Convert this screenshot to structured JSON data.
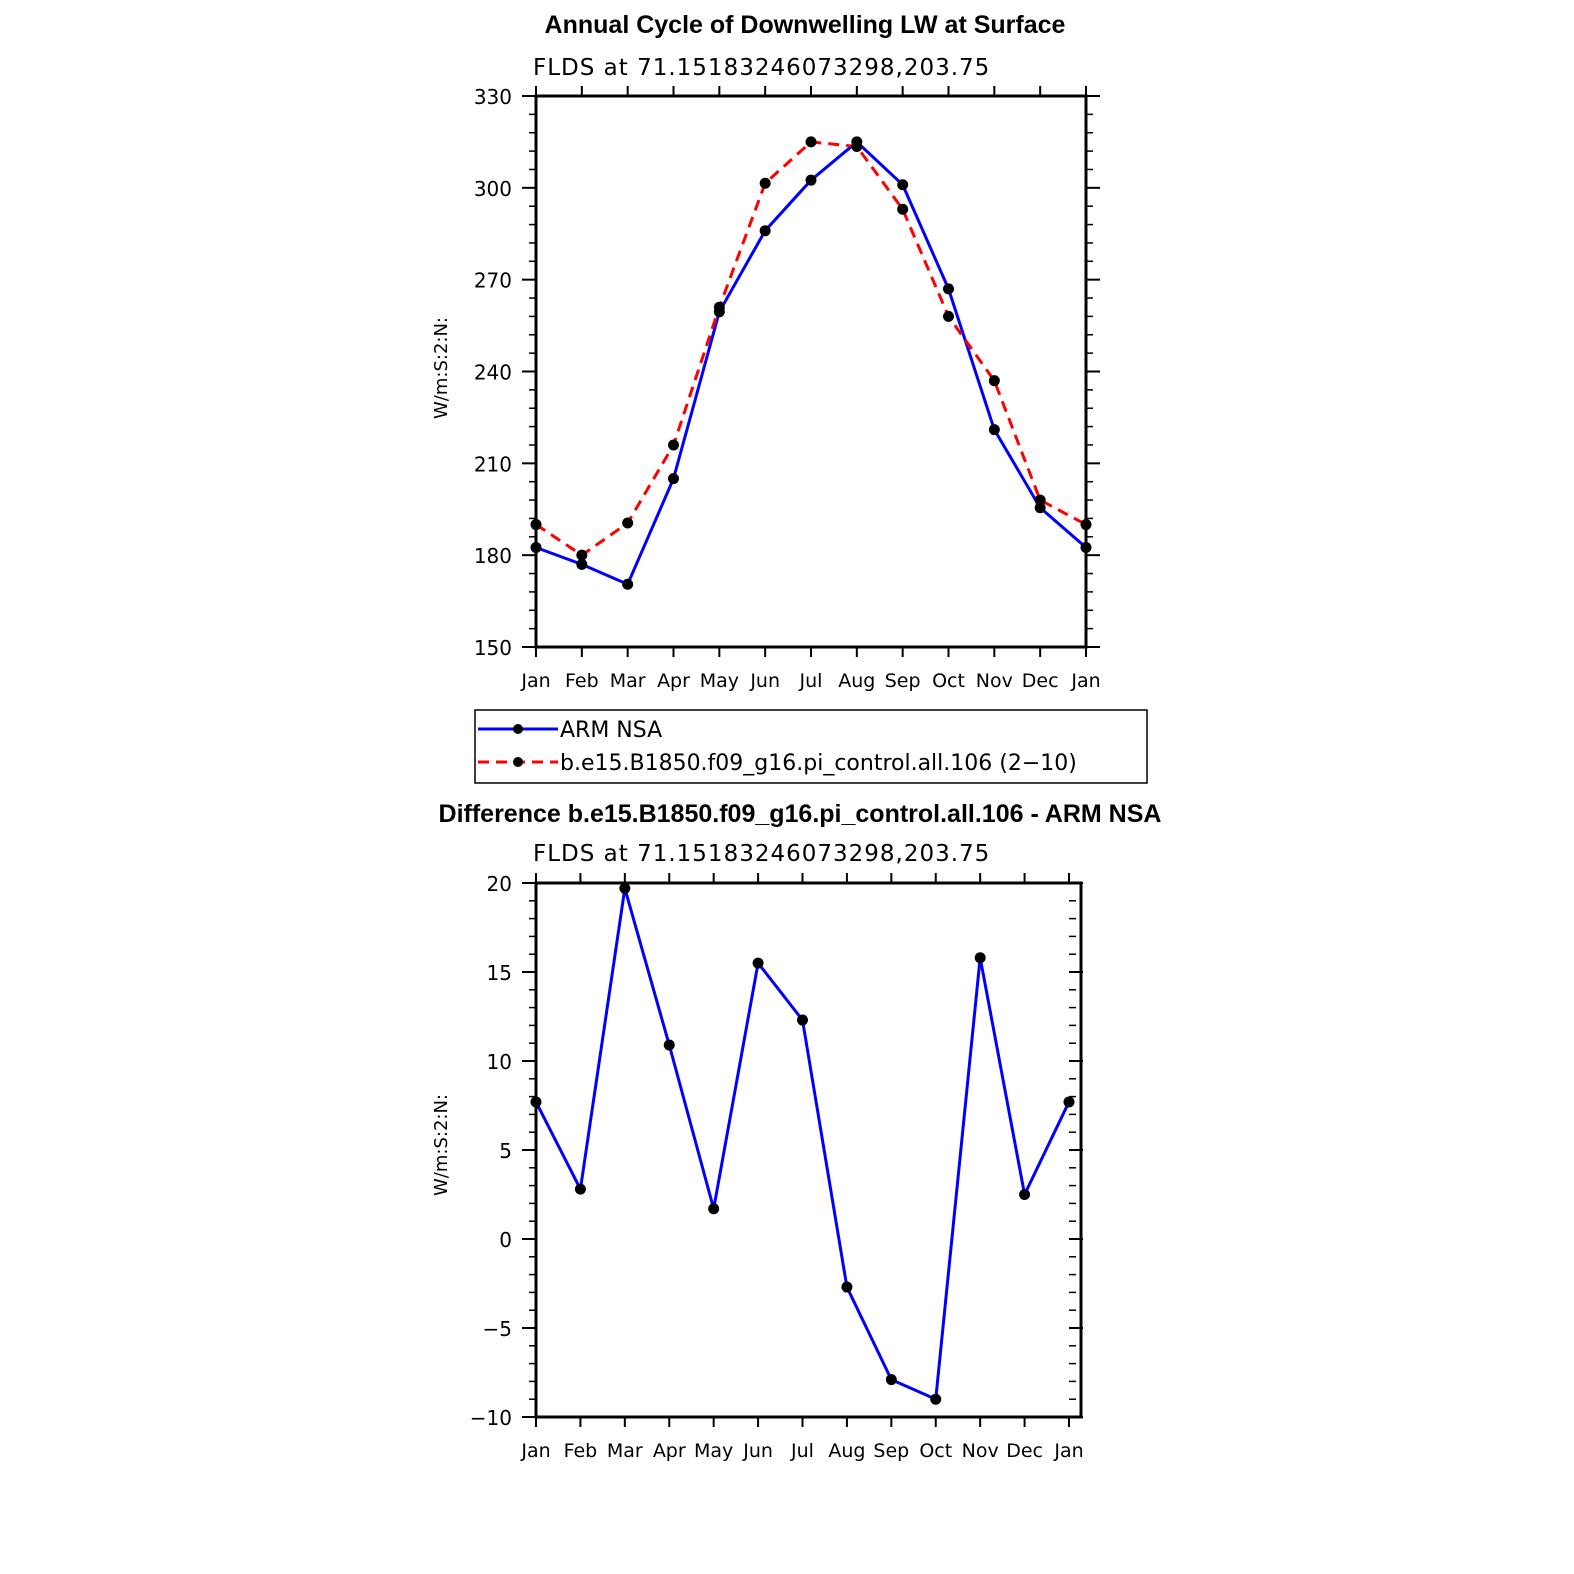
{
  "chart_data": [
    {
      "type": "line",
      "title": "Annual Cycle of Downwelling LW at Surface",
      "subtitle": "FLDS at 71.15183246073298,203.75",
      "ylabel": "W/m:S:2:N:",
      "xlabel": "",
      "ylim": [
        150,
        330
      ],
      "yticks": [
        150,
        180,
        210,
        240,
        270,
        300,
        330
      ],
      "yticks_text": [
        "150",
        "180",
        "210",
        "240",
        "270",
        "300",
        "330"
      ],
      "categories": [
        "Jan",
        "Feb",
        "Mar",
        "Apr",
        "May",
        "Jun",
        "Jul",
        "Aug",
        "Sep",
        "Oct",
        "Nov",
        "Dec",
        "Jan"
      ],
      "series": [
        {
          "name": "ARM NSA",
          "color": "#0000ff",
          "dash": "solid",
          "values": [
            182.5,
            177,
            170.5,
            205,
            259.5,
            286,
            302.5,
            315,
            301,
            267,
            221,
            195.5,
            182.5
          ]
        },
        {
          "name": "b.e15.B1850.f09_g16.pi_control.all.106 (2−10)",
          "color": "#ff0000",
          "dash": "dashed",
          "values": [
            190,
            180,
            190.5,
            216,
            261,
            301.5,
            315,
            313.5,
            293,
            258,
            237,
            198,
            190
          ]
        }
      ],
      "legend": {
        "placement": "below"
      },
      "grid": false
    },
    {
      "type": "line",
      "title": "Difference b.e15.B1850.f09_g16.pi_control.all.106 - ARM NSA",
      "subtitle": "FLDS at 71.15183246073298,203.75",
      "ylabel": "W/m:S:2:N:",
      "xlabel": "",
      "ylim": [
        -10,
        20
      ],
      "yticks": [
        -10,
        -5,
        0,
        5,
        10,
        15,
        20
      ],
      "yticks_text": [
        "−10",
        "−5",
        "0",
        "5",
        "10",
        "15",
        "20"
      ],
      "categories": [
        "Jan",
        "Feb",
        "Mar",
        "Apr",
        "May",
        "Jun",
        "Jul",
        "Aug",
        "Sep",
        "Oct",
        "Nov",
        "Dec",
        "Jan"
      ],
      "series": [
        {
          "color": "#0000ff",
          "dash": "solid",
          "values": [
            7.7,
            2.8,
            19.7,
            10.9,
            1.7,
            15.5,
            12.3,
            -2.7,
            -7.9,
            -9.0,
            15.8,
            2.5,
            7.7
          ]
        }
      ],
      "grid": false
    }
  ]
}
